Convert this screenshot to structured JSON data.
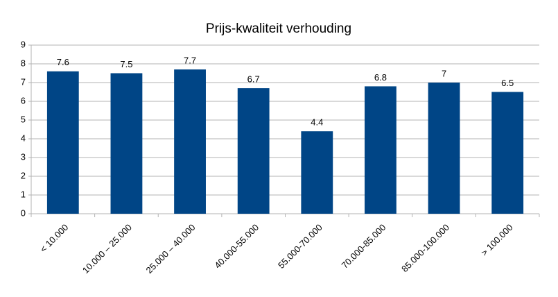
{
  "chart_data": {
    "type": "bar",
    "title": "Prijs-kwaliteit verhouding",
    "categories": [
      "< 10.000",
      "10.000 – 25.000",
      "25.000 – 40.000",
      "40.000-55.000",
      "55.000-70.000",
      "70.000-85.000",
      "85.000-100.000",
      "> 100.000"
    ],
    "values": [
      7.6,
      7.5,
      7.7,
      6.7,
      4.4,
      6.8,
      7,
      6.5
    ],
    "color": "#004586",
    "ylim": [
      0,
      9
    ],
    "yticks": [
      0,
      1,
      2,
      3,
      4,
      5,
      6,
      7,
      8,
      9
    ],
    "grid": true,
    "data_labels": true
  }
}
